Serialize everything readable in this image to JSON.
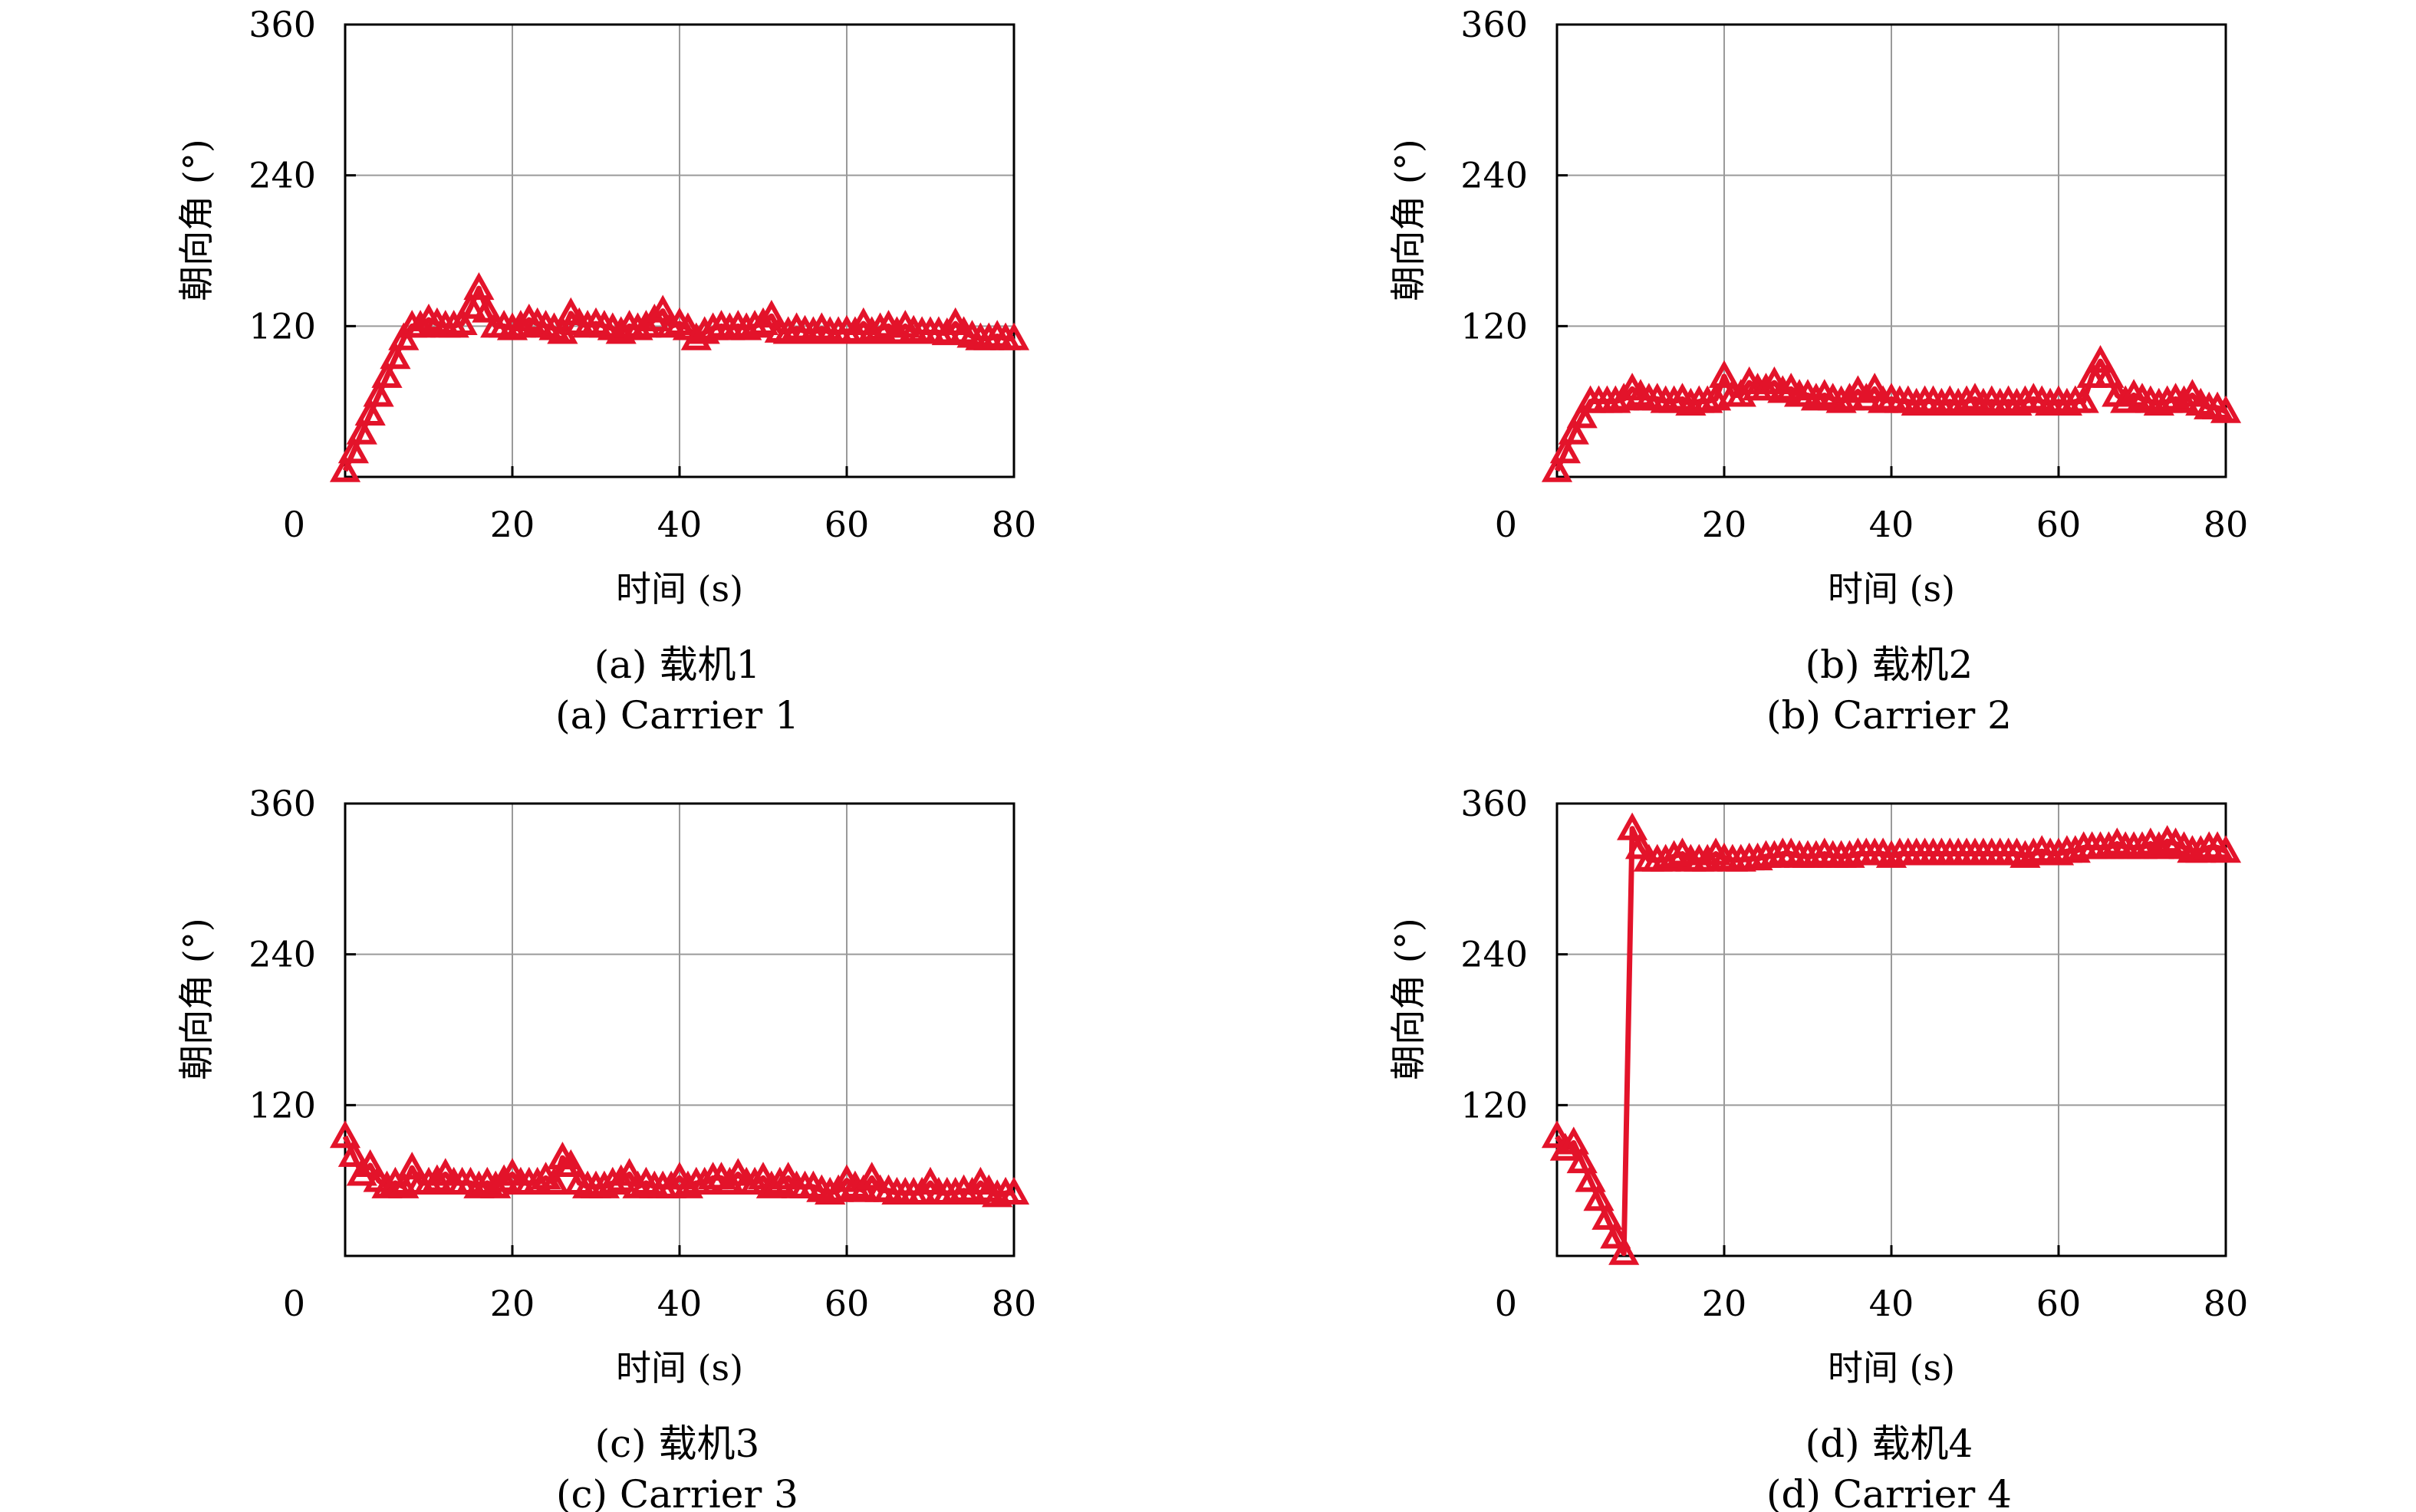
{
  "series_color": "#e3132a",
  "chart_data": [
    {
      "type": "line",
      "caption_cn": "(a) 载机1",
      "caption_en": "(a) Carrier 1",
      "xlabel": "时间 (s)",
      "ylabel": "朝向角 (°)",
      "xlim": [
        0,
        80
      ],
      "ylim": [
        0,
        360
      ],
      "xticks": [
        "20",
        "40",
        "60",
        "80"
      ],
      "yticks": [
        "120",
        "240",
        "360"
      ],
      "origin_label": "0",
      "grid": true,
      "marker": "triangle",
      "x": [
        0,
        1,
        2,
        3,
        4,
        5,
        6,
        7,
        8,
        9,
        10,
        11,
        12,
        13,
        14,
        15,
        16,
        17,
        18,
        19,
        20,
        21,
        22,
        23,
        24,
        25,
        26,
        27,
        28,
        29,
        30,
        31,
        32,
        33,
        34,
        35,
        36,
        37,
        38,
        39,
        40,
        41,
        42,
        43,
        44,
        45,
        46,
        47,
        48,
        49,
        50,
        51,
        52,
        53,
        54,
        55,
        56,
        57,
        58,
        59,
        60,
        61,
        62,
        63,
        64,
        65,
        66,
        67,
        68,
        69,
        70,
        71,
        72,
        73,
        74,
        75,
        76,
        77,
        78,
        79,
        80
      ],
      "y": [
        5,
        20,
        35,
        50,
        65,
        80,
        95,
        110,
        120,
        120,
        125,
        122,
        120,
        120,
        122,
        135,
        150,
        132,
        120,
        120,
        118,
        120,
        125,
        122,
        120,
        118,
        115,
        130,
        122,
        120,
        122,
        120,
        118,
        115,
        120,
        118,
        120,
        125,
        132,
        120,
        122,
        118,
        110,
        115,
        118,
        120,
        118,
        120,
        118,
        120,
        122,
        128,
        116,
        115,
        118,
        116,
        115,
        118,
        115,
        115,
        116,
        115,
        122,
        115,
        118,
        120,
        115,
        120,
        116,
        115,
        115,
        115,
        114,
        122,
        115,
        112,
        110,
        110,
        112,
        110,
        110
      ]
    },
    {
      "type": "line",
      "caption_cn": "(b) 载机2",
      "caption_en": "(b) Carrier 2",
      "xlabel": "时间 (s)",
      "ylabel": "朝向角 (°)",
      "xlim": [
        0,
        80
      ],
      "ylim": [
        0,
        360
      ],
      "xticks": [
        "20",
        "40",
        "60",
        "80"
      ],
      "yticks": [
        "120",
        "240",
        "360"
      ],
      "origin_label": "0",
      "grid": true,
      "marker": "triangle",
      "x": [
        0,
        1,
        2,
        3,
        4,
        5,
        6,
        7,
        8,
        9,
        10,
        11,
        12,
        13,
        14,
        15,
        16,
        17,
        18,
        19,
        20,
        21,
        22,
        23,
        24,
        25,
        26,
        27,
        28,
        29,
        30,
        31,
        32,
        33,
        34,
        35,
        36,
        37,
        38,
        39,
        40,
        41,
        42,
        43,
        44,
        45,
        46,
        47,
        48,
        49,
        50,
        51,
        52,
        53,
        54,
        55,
        56,
        57,
        58,
        59,
        60,
        61,
        62,
        63,
        64,
        65,
        66,
        67,
        68,
        69,
        70,
        71,
        72,
        73,
        74,
        75,
        76,
        77,
        78,
        79,
        80
      ],
      "y": [
        5,
        20,
        35,
        48,
        60,
        60,
        60,
        60,
        62,
        70,
        65,
        62,
        62,
        60,
        60,
        62,
        58,
        60,
        60,
        62,
        80,
        65,
        65,
        75,
        70,
        70,
        75,
        68,
        70,
        65,
        65,
        62,
        65,
        62,
        60,
        62,
        68,
        62,
        70,
        60,
        62,
        60,
        60,
        58,
        60,
        60,
        58,
        60,
        58,
        60,
        62,
        58,
        60,
        58,
        60,
        58,
        60,
        62,
        60,
        58,
        60,
        58,
        60,
        60,
        80,
        92,
        80,
        65,
        60,
        65,
        62,
        60,
        58,
        60,
        62,
        60,
        65,
        58,
        55,
        55,
        52
      ]
    },
    {
      "type": "line",
      "caption_cn": "(c) 载机3",
      "caption_en": "(c) Carrier 3",
      "xlabel": "时间 (s)",
      "ylabel": "朝向角 (°)",
      "xlim": [
        0,
        80
      ],
      "ylim": [
        0,
        360
      ],
      "xticks": [
        "20",
        "40",
        "60",
        "80"
      ],
      "yticks": [
        "120",
        "240",
        "360"
      ],
      "origin_label": "0",
      "grid": true,
      "marker": "triangle",
      "x": [
        0,
        1,
        2,
        3,
        4,
        5,
        6,
        7,
        8,
        9,
        10,
        11,
        12,
        13,
        14,
        15,
        16,
        17,
        18,
        19,
        20,
        21,
        22,
        23,
        24,
        25,
        26,
        27,
        28,
        29,
        30,
        31,
        32,
        33,
        34,
        35,
        36,
        37,
        38,
        39,
        40,
        41,
        42,
        43,
        44,
        45,
        46,
        47,
        48,
        49,
        50,
        51,
        52,
        53,
        54,
        55,
        56,
        57,
        58,
        59,
        60,
        61,
        62,
        63,
        64,
        65,
        66,
        67,
        68,
        69,
        70,
        71,
        72,
        73,
        74,
        75,
        76,
        77,
        78,
        79,
        80
      ],
      "y": [
        95,
        80,
        65,
        72,
        60,
        55,
        58,
        55,
        70,
        58,
        58,
        60,
        65,
        58,
        58,
        58,
        55,
        58,
        55,
        60,
        65,
        58,
        58,
        58,
        62,
        58,
        78,
        72,
        58,
        55,
        55,
        55,
        58,
        60,
        65,
        55,
        58,
        55,
        55,
        55,
        62,
        55,
        58,
        58,
        62,
        62,
        58,
        65,
        58,
        58,
        62,
        55,
        58,
        62,
        55,
        55,
        55,
        52,
        50,
        52,
        60,
        55,
        52,
        62,
        52,
        52,
        50,
        50,
        50,
        50,
        58,
        50,
        50,
        50,
        52,
        50,
        58,
        52,
        48,
        50,
        50
      ]
    },
    {
      "type": "line",
      "caption_cn": "(d) 载机4",
      "caption_en": "(d) Carrier 4",
      "xlabel": "时间 (s)",
      "ylabel": "朝向角 (°)",
      "xlim": [
        0,
        80
      ],
      "ylim": [
        0,
        360
      ],
      "xticks": [
        "20",
        "40",
        "60",
        "80"
      ],
      "yticks": [
        "120",
        "240",
        "360"
      ],
      "origin_label": "0",
      "grid": true,
      "marker": "triangle",
      "x": [
        0,
        1,
        2,
        3,
        4,
        5,
        6,
        7,
        8,
        9,
        10,
        11,
        12,
        13,
        14,
        15,
        16,
        17,
        18,
        19,
        20,
        21,
        22,
        23,
        24,
        25,
        26,
        27,
        28,
        29,
        30,
        31,
        32,
        33,
        34,
        35,
        36,
        37,
        38,
        39,
        40,
        41,
        42,
        43,
        44,
        45,
        46,
        47,
        48,
        49,
        50,
        51,
        52,
        53,
        54,
        55,
        56,
        57,
        58,
        59,
        60,
        61,
        62,
        63,
        64,
        65,
        66,
        67,
        68,
        69,
        70,
        71,
        72,
        73,
        74,
        75,
        76,
        77,
        78,
        79,
        80
      ],
      "y": [
        95,
        85,
        90,
        75,
        60,
        45,
        30,
        15,
        2,
        340,
        325,
        315,
        315,
        315,
        318,
        320,
        315,
        315,
        315,
        320,
        316,
        315,
        315,
        316,
        316,
        318,
        318,
        320,
        320,
        318,
        318,
        318,
        320,
        318,
        318,
        318,
        320,
        320,
        320,
        320,
        318,
        320,
        320,
        320,
        320,
        320,
        320,
        320,
        320,
        320,
        320,
        320,
        320,
        320,
        320,
        320,
        318,
        320,
        322,
        320,
        320,
        322,
        322,
        325,
        325,
        325,
        325,
        328,
        325,
        325,
        325,
        328,
        325,
        330,
        328,
        325,
        322,
        322,
        325,
        325,
        322
      ]
    }
  ]
}
